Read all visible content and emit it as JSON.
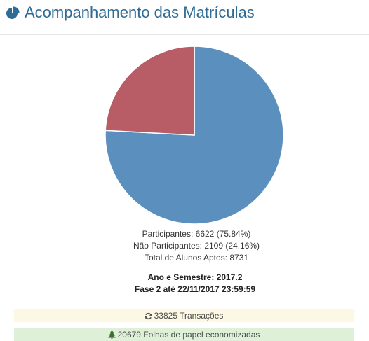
{
  "header": {
    "title": "Acompanhamento das Matrículas",
    "icon": "pie-chart-icon"
  },
  "colors": {
    "title": "#2f6c95",
    "participantes": "#5b8fbe",
    "nao_participantes": "#b85d66",
    "transactions_bg": "#fcf8e3",
    "paper_bg": "#dff0d8"
  },
  "chart_data": {
    "type": "pie",
    "categories": [
      "Participantes",
      "Não Participantes"
    ],
    "values": [
      6622,
      2109
    ],
    "percentages": [
      75.84,
      24.16
    ],
    "colors": [
      "#5b8fbe",
      "#b85d66"
    ]
  },
  "stats": {
    "participantes": "Participantes: 6622 (75.84%)",
    "nao_participantes": "Não Participantes: 2109 (24.16%)",
    "total": "Total de Alunos Aptos: 8731"
  },
  "period": {
    "semester": "Ano e Semestre: 2017.2",
    "phase": "Fase 2 até 22/11/2017 23:59:59"
  },
  "transactions": {
    "icon": "refresh-icon",
    "label": "33825 Transações"
  },
  "paper": {
    "icon": "tree-icon",
    "label": "20679 Folhas de papel economizadas"
  }
}
